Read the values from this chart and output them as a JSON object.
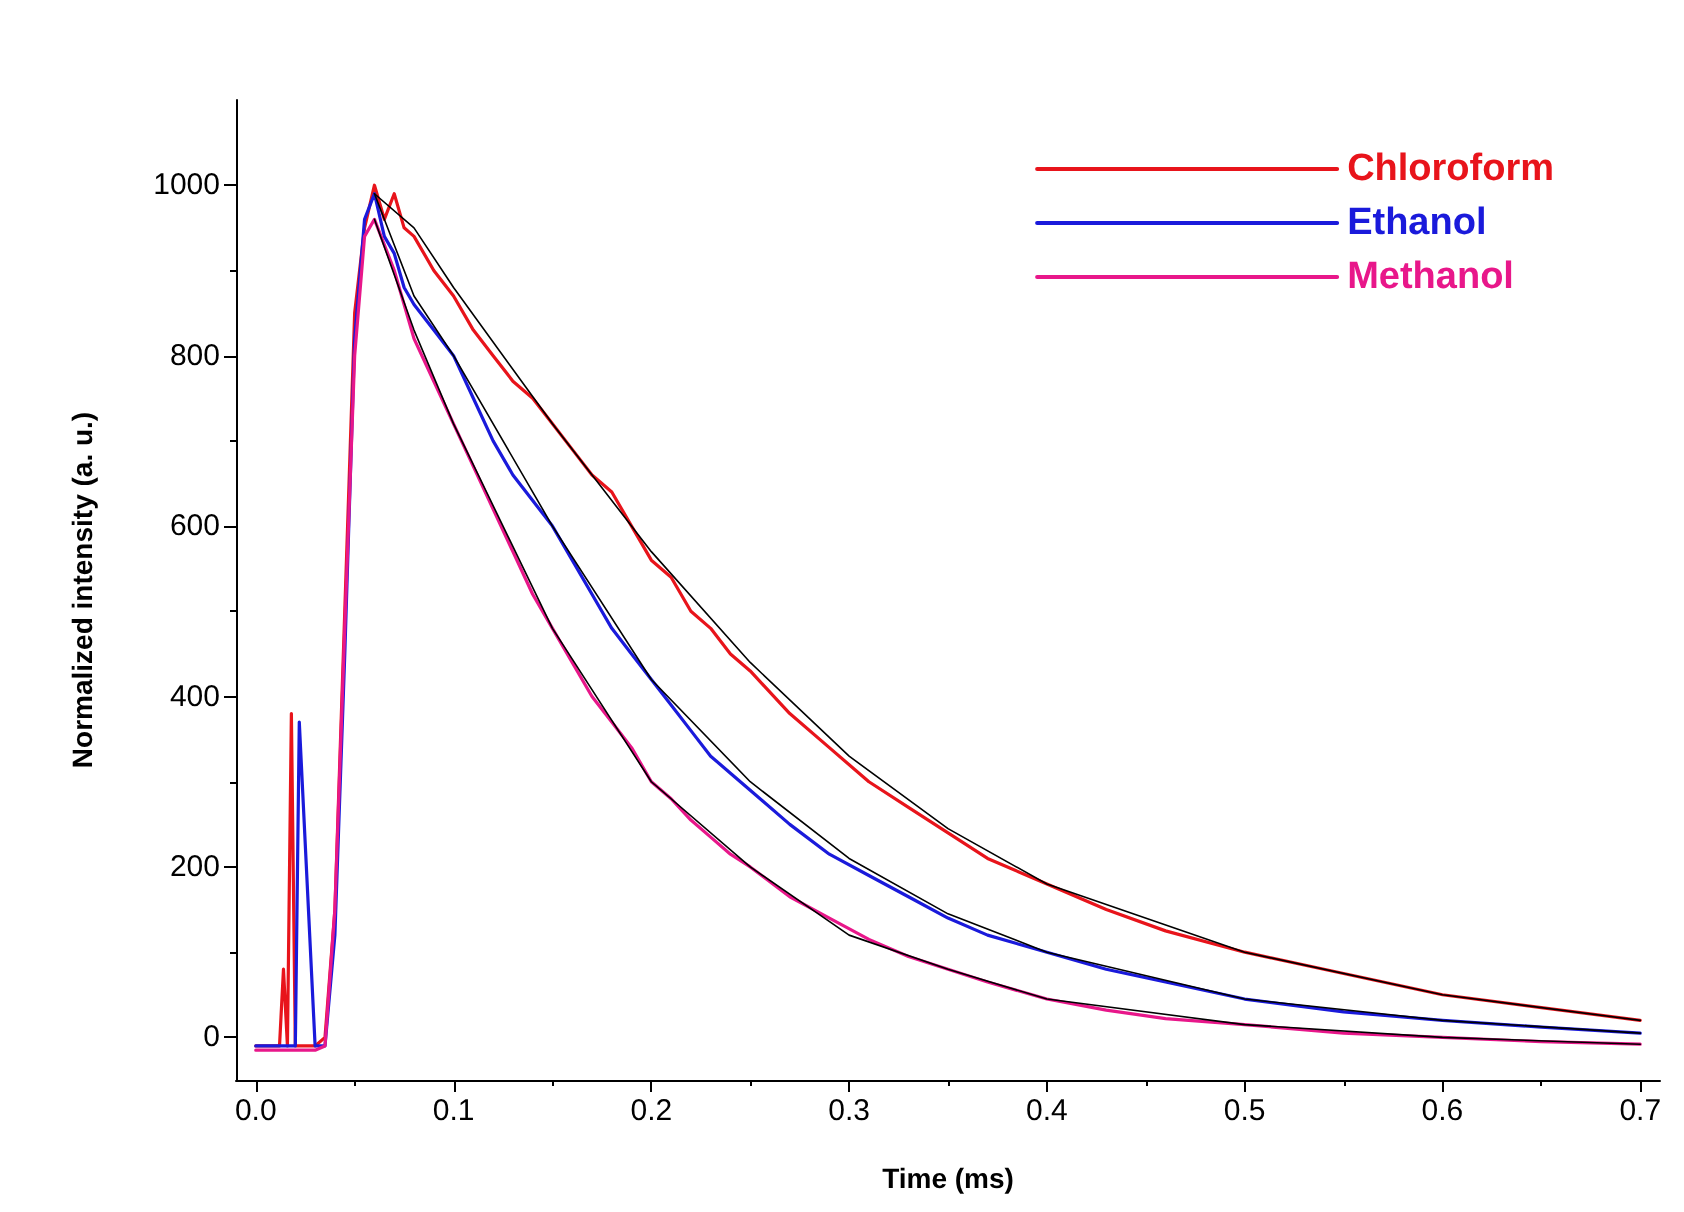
{
  "chart_data": {
    "type": "line",
    "xlabel": "Time (ms)",
    "ylabel": "Normalized intensity (a. u.)",
    "marker": "none",
    "grid": false,
    "legend": "top right",
    "x": [
      0,
      0.012,
      0.014,
      0.016,
      0.018,
      0.02,
      0.022,
      0.03,
      0.035,
      0.04,
      0.045,
      0.05,
      0.055,
      0.06,
      0.065,
      0.07,
      0.075,
      0.08,
      0.09,
      0.1,
      0.11,
      0.12,
      0.13,
      0.14,
      0.15,
      0.16,
      0.17,
      0.18,
      0.19,
      0.2,
      0.21,
      0.22,
      0.23,
      0.24,
      0.25,
      0.27,
      0.29,
      0.31,
      0.33,
      0.35,
      0.37,
      0.4,
      0.43,
      0.46,
      0.5,
      0.55,
      0.6,
      0.65,
      0.7
    ],
    "xlim": [
      -0.01,
      0.71
    ],
    "xticks": [
      {
        "value": 0,
        "label": "0.0"
      },
      {
        "value": 0.1,
        "label": "0.1"
      },
      {
        "value": 0.2,
        "label": "0.2"
      },
      {
        "value": 0.3,
        "label": "0.3"
      },
      {
        "value": 0.4,
        "label": "0.4"
      },
      {
        "value": 0.5,
        "label": "0.5"
      },
      {
        "value": 0.6,
        "label": "0.6"
      },
      {
        "value": 0.7,
        "label": "0.7"
      }
    ],
    "ylim": [
      -50,
      1100
    ],
    "yticks": [
      0,
      200,
      400,
      600,
      800,
      1000
    ],
    "series": [
      {
        "name": "Chloroform",
        "color": "#e8141b",
        "values": [
          -10,
          -10,
          80,
          -10,
          380,
          -10,
          -10,
          -10,
          0,
          150,
          500,
          850,
          950,
          1000,
          960,
          990,
          950,
          940,
          900,
          870,
          830,
          800,
          770,
          750,
          720,
          690,
          660,
          640,
          600,
          560,
          540,
          500,
          480,
          450,
          430,
          380,
          340,
          300,
          270,
          240,
          210,
          180,
          150,
          125,
          100,
          75,
          50,
          35,
          20
        ]
      },
      {
        "name": "Ethanol",
        "color": "#1a1adb",
        "values": [
          -10,
          -10,
          -10,
          -10,
          -10,
          -10,
          370,
          -10,
          -10,
          120,
          450,
          820,
          960,
          990,
          940,
          920,
          880,
          860,
          830,
          800,
          750,
          700,
          660,
          630,
          600,
          560,
          520,
          480,
          450,
          420,
          390,
          360,
          330,
          310,
          290,
          250,
          215,
          190,
          165,
          140,
          120,
          100,
          80,
          65,
          45,
          30,
          20,
          12,
          5
        ]
      },
      {
        "name": "Methanol",
        "color": "#e8178a",
        "values": [
          -15,
          -15,
          -15,
          -15,
          -15,
          -15,
          -15,
          -15,
          -10,
          150,
          480,
          800,
          940,
          960,
          930,
          900,
          860,
          820,
          770,
          720,
          670,
          620,
          570,
          520,
          480,
          440,
          400,
          370,
          340,
          300,
          280,
          255,
          235,
          215,
          200,
          165,
          140,
          115,
          95,
          80,
          65,
          45,
          32,
          22,
          15,
          5,
          0,
          -5,
          -8
        ]
      },
      {
        "color": "#000000",
        "x": [
          0.06,
          0.08,
          0.1,
          0.15,
          0.2,
          0.25,
          0.3,
          0.35,
          0.4,
          0.5,
          0.6,
          0.7
        ],
        "values": [
          990,
          950,
          880,
          720,
          570,
          440,
          330,
          245,
          180,
          100,
          50,
          20
        ]
      },
      {
        "color": "#000000",
        "x": [
          0.06,
          0.08,
          0.1,
          0.15,
          0.2,
          0.25,
          0.3,
          0.35,
          0.4,
          0.5,
          0.6,
          0.7
        ],
        "values": [
          990,
          870,
          800,
          600,
          420,
          300,
          210,
          145,
          100,
          45,
          20,
          5
        ]
      },
      {
        "color": "#000000",
        "x": [
          0.06,
          0.08,
          0.1,
          0.15,
          0.2,
          0.25,
          0.3,
          0.35,
          0.4,
          0.5,
          0.6,
          0.7
        ],
        "values": [
          960,
          830,
          720,
          480,
          300,
          200,
          120,
          80,
          45,
          15,
          0,
          -8
        ]
      }
    ]
  }
}
